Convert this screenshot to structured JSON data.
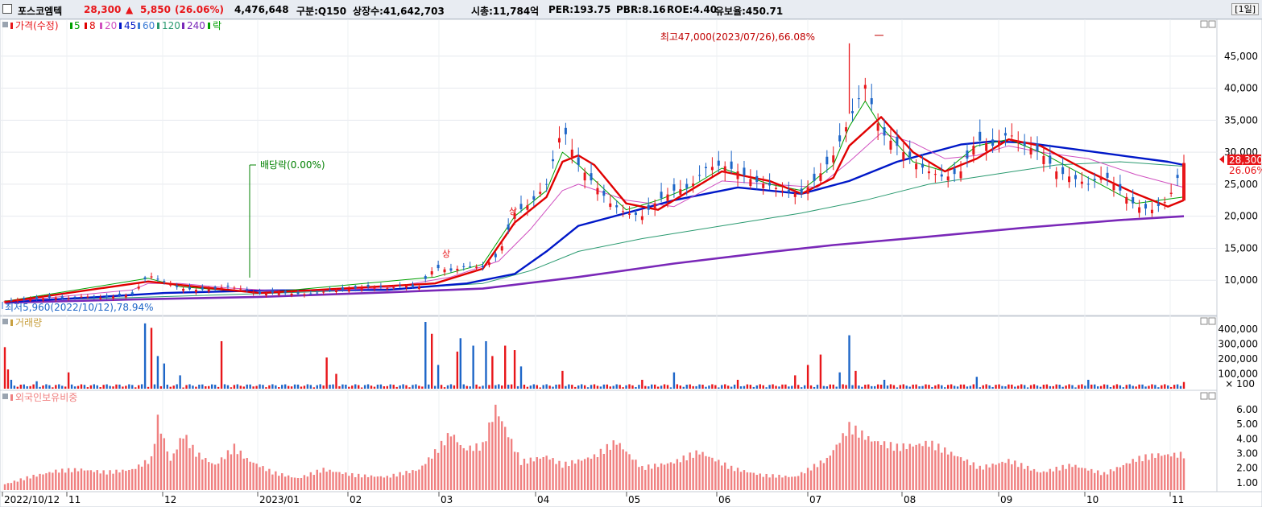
{
  "header": {
    "stock_name": "포스코엠텍",
    "price": "28,300",
    "change_arrow": "▲",
    "change": "5,850",
    "change_pct": "(26.06%)",
    "volume": "4,476,648",
    "market": "구분:Q150",
    "listed_shares": "상장수:41,642,703",
    "market_cap": "시총:11,784억",
    "per": "PER:193.75",
    "pbr": "PBR:8.16",
    "roe": "ROE:4.40",
    "reserve_ratio": "유보율:450.71",
    "period": "[1일]"
  },
  "price_legend": {
    "price": "가격(수정)",
    "ma5": "5",
    "ma8": "8",
    "ma20": "20",
    "ma45": "45",
    "ma60": "60",
    "ma120": "120",
    "ma240": "240",
    "drop": "락"
  },
  "volume_legend": "거래량",
  "foreign_legend": "외국인보유비중",
  "annotations": {
    "high": "최고47,000(2023/07/26),66.08%",
    "low": "최저5,960(2022/10/12),78.94%",
    "dividend": "배당락(0.00%)",
    "limit_up_1": "상",
    "limit_up_2": "상"
  },
  "current_price_tag": "28,300",
  "current_pct_tag": "26.06%",
  "volume_unit": "× 100",
  "colors": {
    "up": "#e8161a",
    "down": "#1e66c8",
    "ma5": "#00a000",
    "ma8": "#e00000",
    "ma20": "#d050c0",
    "ma45": "#0018c8",
    "ma60": "#3a7bd5",
    "ma120": "#2a9a70",
    "ma240": "#7a28b8",
    "foreign": "#f08080",
    "header_red": "#e8161a"
  },
  "chart_data": [
    {
      "type": "candlestick",
      "title": "가격(수정)",
      "y_axis_ticks": [
        "45,000",
        "40,000",
        "35,000",
        "30,000",
        "25,000",
        "20,000",
        "15,000",
        "10,000"
      ],
      "ylim": [
        5000,
        50000
      ],
      "x_axis_labels": [
        "2022/10/12",
        "11",
        "12",
        "2023/01",
        "02",
        "03",
        "04",
        "05",
        "06",
        "07",
        "08",
        "09",
        "10",
        "11"
      ],
      "close_points": [
        [
          0,
          6700
        ],
        [
          5,
          7000
        ],
        [
          10,
          7100
        ],
        [
          15,
          7300
        ],
        [
          20,
          7200
        ],
        [
          25,
          7500
        ],
        [
          30,
          7300
        ],
        [
          35,
          7500
        ],
        [
          40,
          7800
        ],
        [
          45,
          10800
        ],
        [
          50,
          9800
        ],
        [
          55,
          8700
        ],
        [
          60,
          8500
        ],
        [
          65,
          8600
        ],
        [
          70,
          9000
        ],
        [
          75,
          8600
        ],
        [
          80,
          7900
        ],
        [
          85,
          8100
        ],
        [
          90,
          7900
        ],
        [
          95,
          7800
        ],
        [
          100,
          8200
        ],
        [
          105,
          8500
        ],
        [
          110,
          8700
        ],
        [
          115,
          9000
        ],
        [
          120,
          8800
        ],
        [
          125,
          9100
        ],
        [
          130,
          9000
        ],
        [
          135,
          12000
        ],
        [
          140,
          11500
        ],
        [
          145,
          12200
        ],
        [
          150,
          12000
        ],
        [
          155,
          14000
        ],
        [
          160,
          20500
        ],
        [
          165,
          22000
        ],
        [
          170,
          25000
        ],
        [
          175,
          34000
        ],
        [
          180,
          28000
        ],
        [
          185,
          25000
        ],
        [
          190,
          22000
        ],
        [
          195,
          20500
        ],
        [
          200,
          20000
        ],
        [
          205,
          22500
        ],
        [
          210,
          24000
        ],
        [
          215,
          24500
        ],
        [
          220,
          27500
        ],
        [
          225,
          28000
        ],
        [
          230,
          27000
        ],
        [
          235,
          25500
        ],
        [
          240,
          24800
        ],
        [
          245,
          23800
        ],
        [
          250,
          23500
        ],
        [
          255,
          26000
        ],
        [
          260,
          29500
        ],
        [
          265,
          35000
        ],
        [
          270,
          40500
        ],
        [
          275,
          33000
        ],
        [
          280,
          31000
        ],
        [
          285,
          28500
        ],
        [
          290,
          27000
        ],
        [
          295,
          26000
        ],
        [
          300,
          27000
        ],
        [
          305,
          32000
        ],
        [
          310,
          31000
        ],
        [
          315,
          33000
        ],
        [
          320,
          31000
        ],
        [
          325,
          30000
        ],
        [
          330,
          27000
        ],
        [
          335,
          26000
        ],
        [
          340,
          25000
        ],
        [
          345,
          26500
        ],
        [
          350,
          24000
        ],
        [
          355,
          21500
        ],
        [
          360,
          21000
        ],
        [
          365,
          22500
        ],
        [
          370,
          28300
        ]
      ],
      "moving_averages": {
        "ma240": [
          [
            0,
            6500
          ],
          [
            40,
            7000
          ],
          [
            80,
            7400
          ],
          [
            120,
            8100
          ],
          [
            150,
            8700
          ],
          [
            180,
            10500
          ],
          [
            210,
            12600
          ],
          [
            240,
            14400
          ],
          [
            260,
            15500
          ],
          [
            290,
            16800
          ],
          [
            320,
            18200
          ],
          [
            350,
            19400
          ],
          [
            370,
            20000
          ]
        ],
        "ma120": [
          [
            0,
            6800
          ],
          [
            40,
            7300
          ],
          [
            80,
            7900
          ],
          [
            120,
            8600
          ],
          [
            150,
            9500
          ],
          [
            165,
            11500
          ],
          [
            180,
            14500
          ],
          [
            200,
            16500
          ],
          [
            225,
            18500
          ],
          [
            250,
            20500
          ],
          [
            270,
            22500
          ],
          [
            290,
            25000
          ],
          [
            310,
            26500
          ],
          [
            330,
            28000
          ],
          [
            350,
            28500
          ],
          [
            370,
            27800
          ]
        ],
        "ma45": [
          [
            0,
            6600
          ],
          [
            30,
            7400
          ],
          [
            50,
            8000
          ],
          [
            80,
            8400
          ],
          [
            120,
            8500
          ],
          [
            145,
            9500
          ],
          [
            160,
            11000
          ],
          [
            170,
            14500
          ],
          [
            180,
            18500
          ],
          [
            195,
            20500
          ],
          [
            210,
            22500
          ],
          [
            230,
            24500
          ],
          [
            250,
            23500
          ],
          [
            265,
            25500
          ],
          [
            280,
            28500
          ],
          [
            300,
            31200
          ],
          [
            310,
            31700
          ],
          [
            320,
            31500
          ],
          [
            335,
            30500
          ],
          [
            350,
            29500
          ],
          [
            365,
            28500
          ],
          [
            370,
            28000
          ]
        ],
        "ma20": [
          [
            0,
            6600
          ],
          [
            40,
            8500
          ],
          [
            45,
            9500
          ],
          [
            55,
            9500
          ],
          [
            70,
            8800
          ],
          [
            90,
            8200
          ],
          [
            120,
            8800
          ],
          [
            140,
            10500
          ],
          [
            155,
            13000
          ],
          [
            165,
            18000
          ],
          [
            175,
            24000
          ],
          [
            180,
            25000
          ],
          [
            195,
            22500
          ],
          [
            210,
            21500
          ],
          [
            225,
            25500
          ],
          [
            240,
            25000
          ],
          [
            255,
            24500
          ],
          [
            265,
            28500
          ],
          [
            275,
            33000
          ],
          [
            285,
            31500
          ],
          [
            295,
            29000
          ],
          [
            305,
            29500
          ],
          [
            315,
            31000
          ],
          [
            325,
            30000
          ],
          [
            340,
            29000
          ],
          [
            355,
            26500
          ],
          [
            370,
            24500
          ]
        ],
        "ma5": [
          [
            0,
            6700
          ],
          [
            45,
            10300
          ],
          [
            55,
            9000
          ],
          [
            80,
            8000
          ],
          [
            135,
            10500
          ],
          [
            150,
            12500
          ],
          [
            160,
            20000
          ],
          [
            170,
            24000
          ],
          [
            175,
            30000
          ],
          [
            180,
            28000
          ],
          [
            195,
            21000
          ],
          [
            205,
            22500
          ],
          [
            215,
            24500
          ],
          [
            225,
            27500
          ],
          [
            240,
            25000
          ],
          [
            250,
            24000
          ],
          [
            260,
            28000
          ],
          [
            265,
            34000
          ],
          [
            270,
            38000
          ],
          [
            275,
            34000
          ],
          [
            285,
            28500
          ],
          [
            295,
            27000
          ],
          [
            305,
            31000
          ],
          [
            315,
            32000
          ],
          [
            325,
            30000
          ],
          [
            340,
            26000
          ],
          [
            355,
            22000
          ],
          [
            370,
            23000
          ]
        ],
        "ma8": [
          [
            0,
            6600
          ],
          [
            45,
            9800
          ],
          [
            60,
            9000
          ],
          [
            80,
            8000
          ],
          [
            135,
            9500
          ],
          [
            150,
            11800
          ],
          [
            160,
            19000
          ],
          [
            170,
            23000
          ],
          [
            175,
            28500
          ],
          [
            180,
            29500
          ],
          [
            185,
            28000
          ],
          [
            195,
            22000
          ],
          [
            205,
            21000
          ],
          [
            215,
            24000
          ],
          [
            225,
            27000
          ],
          [
            240,
            25500
          ],
          [
            250,
            23500
          ],
          [
            260,
            26000
          ],
          [
            265,
            31000
          ],
          [
            275,
            35500
          ],
          [
            285,
            30000
          ],
          [
            295,
            27000
          ],
          [
            305,
            29000
          ],
          [
            315,
            32000
          ],
          [
            325,
            31000
          ],
          [
            340,
            27000
          ],
          [
            355,
            23500
          ],
          [
            365,
            21500
          ],
          [
            370,
            22500
          ]
        ]
      },
      "high": {
        "index": 265,
        "value": 47000
      },
      "low": {
        "index": 0,
        "value": 5960
      }
    },
    {
      "type": "bar",
      "title": "거래량",
      "unit": "× 100",
      "y_axis_ticks": [
        "400,000",
        "300,000",
        "200,000",
        "100,000"
      ],
      "ylim": [
        0,
        450000
      ],
      "values": [
        [
          0,
          280000
        ],
        [
          1,
          130000
        ],
        [
          2,
          60000
        ],
        [
          10,
          50000
        ],
        [
          20,
          110000
        ],
        [
          44,
          440000
        ],
        [
          46,
          410000
        ],
        [
          48,
          220000
        ],
        [
          50,
          170000
        ],
        [
          55,
          90000
        ],
        [
          68,
          320000
        ],
        [
          101,
          210000
        ],
        [
          104,
          100000
        ],
        [
          132,
          450000
        ],
        [
          134,
          370000
        ],
        [
          136,
          160000
        ],
        [
          142,
          250000
        ],
        [
          143,
          340000
        ],
        [
          147,
          290000
        ],
        [
          151,
          320000
        ],
        [
          153,
          220000
        ],
        [
          157,
          290000
        ],
        [
          160,
          260000
        ],
        [
          162,
          150000
        ],
        [
          175,
          120000
        ],
        [
          200,
          60000
        ],
        [
          210,
          110000
        ],
        [
          230,
          60000
        ],
        [
          248,
          90000
        ],
        [
          252,
          160000
        ],
        [
          256,
          230000
        ],
        [
          262,
          110000
        ],
        [
          265,
          360000
        ],
        [
          267,
          120000
        ],
        [
          276,
          60000
        ],
        [
          305,
          80000
        ],
        [
          340,
          60000
        ],
        [
          370,
          45000
        ]
      ]
    },
    {
      "type": "bar",
      "title": "외국인보유비중",
      "y_axis_ticks": [
        "6.00",
        "5.00",
        "4.00",
        "3.00",
        "2.00",
        "1.00"
      ],
      "ylim": [
        0.5,
        6.6
      ],
      "values": [
        [
          0,
          0.9
        ],
        [
          8,
          1.4
        ],
        [
          16,
          1.8
        ],
        [
          24,
          1.9
        ],
        [
          32,
          1.7
        ],
        [
          40,
          1.9
        ],
        [
          46,
          2.6
        ],
        [
          48,
          5.3
        ],
        [
          52,
          2.5
        ],
        [
          56,
          4.3
        ],
        [
          60,
          3.0
        ],
        [
          66,
          2.2
        ],
        [
          72,
          3.4
        ],
        [
          76,
          2.6
        ],
        [
          84,
          1.7
        ],
        [
          92,
          1.3
        ],
        [
          100,
          1.9
        ],
        [
          110,
          1.5
        ],
        [
          120,
          1.4
        ],
        [
          130,
          1.9
        ],
        [
          136,
          3.3
        ],
        [
          140,
          4.4
        ],
        [
          144,
          3.3
        ],
        [
          150,
          3.5
        ],
        [
          154,
          6.1
        ],
        [
          156,
          5.2
        ],
        [
          162,
          2.4
        ],
        [
          170,
          2.8
        ],
        [
          175,
          2.2
        ],
        [
          185,
          2.8
        ],
        [
          192,
          3.8
        ],
        [
          200,
          2.0
        ],
        [
          210,
          2.4
        ],
        [
          218,
          3.1
        ],
        [
          228,
          2.0
        ],
        [
          238,
          1.5
        ],
        [
          248,
          1.4
        ],
        [
          258,
          2.6
        ],
        [
          265,
          4.8
        ],
        [
          272,
          3.9
        ],
        [
          280,
          3.4
        ],
        [
          290,
          3.7
        ],
        [
          300,
          2.7
        ],
        [
          306,
          2.0
        ],
        [
          315,
          2.5
        ],
        [
          325,
          1.7
        ],
        [
          335,
          2.2
        ],
        [
          345,
          1.6
        ],
        [
          355,
          2.6
        ],
        [
          362,
          2.9
        ],
        [
          370,
          2.9
        ]
      ]
    }
  ]
}
